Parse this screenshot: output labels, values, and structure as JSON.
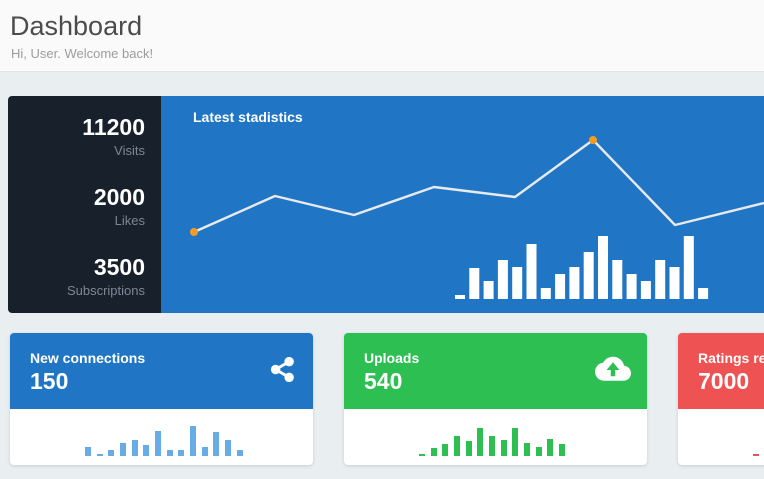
{
  "header": {
    "title": "Dashboard",
    "subtitle": "Hi, User. Welcome back!"
  },
  "stats_panel": {
    "items": [
      {
        "value": "11200",
        "label": "Visits"
      },
      {
        "value": "2000",
        "label": "Likes"
      },
      {
        "value": "3500",
        "label": "Subscriptions"
      }
    ]
  },
  "main_chart": {
    "title": "Latest stadistics"
  },
  "chart_data": [
    {
      "type": "line",
      "title": "Latest stadistics",
      "x": [
        33,
        114,
        193,
        273,
        354,
        432,
        514,
        603
      ],
      "y": [
        136,
        100,
        119,
        91,
        101,
        44,
        129,
        107
      ],
      "highlight_point_indices": [
        0,
        5
      ],
      "line_color": "#e8eaed",
      "dot_color": "#f59b22",
      "grid": "off",
      "legend": "none"
    },
    {
      "type": "bar",
      "values": [
        4,
        31,
        18,
        39,
        32,
        55,
        11,
        25,
        32,
        47,
        63,
        39,
        25,
        18,
        39,
        32,
        63,
        11
      ],
      "bar_color": "#ffffff"
    },
    {
      "type": "bar",
      "card": "New connections",
      "values": [
        9,
        2,
        6,
        13,
        16,
        11,
        25,
        6,
        6,
        30,
        9,
        24,
        16,
        6
      ],
      "bar_color": "#67ace4"
    },
    {
      "type": "bar",
      "card": "Uploads",
      "values": [
        2,
        8,
        12,
        20,
        15,
        28,
        20,
        16,
        28,
        13,
        9,
        17,
        12
      ],
      "bar_color": "#2ebf52"
    },
    {
      "type": "bar",
      "card": "Ratings received",
      "values": [
        2
      ],
      "bar_color": "#ee5253"
    }
  ],
  "cards": [
    {
      "title": "New connections",
      "value": "150",
      "icon": "share-icon",
      "header_color": "#2076c4"
    },
    {
      "title": "Uploads",
      "value": "540",
      "icon": "cloud-upload-icon",
      "header_color": "#2ebf52"
    },
    {
      "title": "Ratings received",
      "value": "7000",
      "header_color": "#ee5253"
    }
  ],
  "colors": {
    "page_bg": "#e9eef1",
    "header_bg": "#fafafa",
    "panel_dark": "#17202b",
    "panel_blue": "#2076c4",
    "green": "#2ebf52",
    "red": "#ee5253",
    "mini_bar_blue": "#67ace4",
    "accent_orange": "#f59b22",
    "line_white": "#e8eaed"
  }
}
